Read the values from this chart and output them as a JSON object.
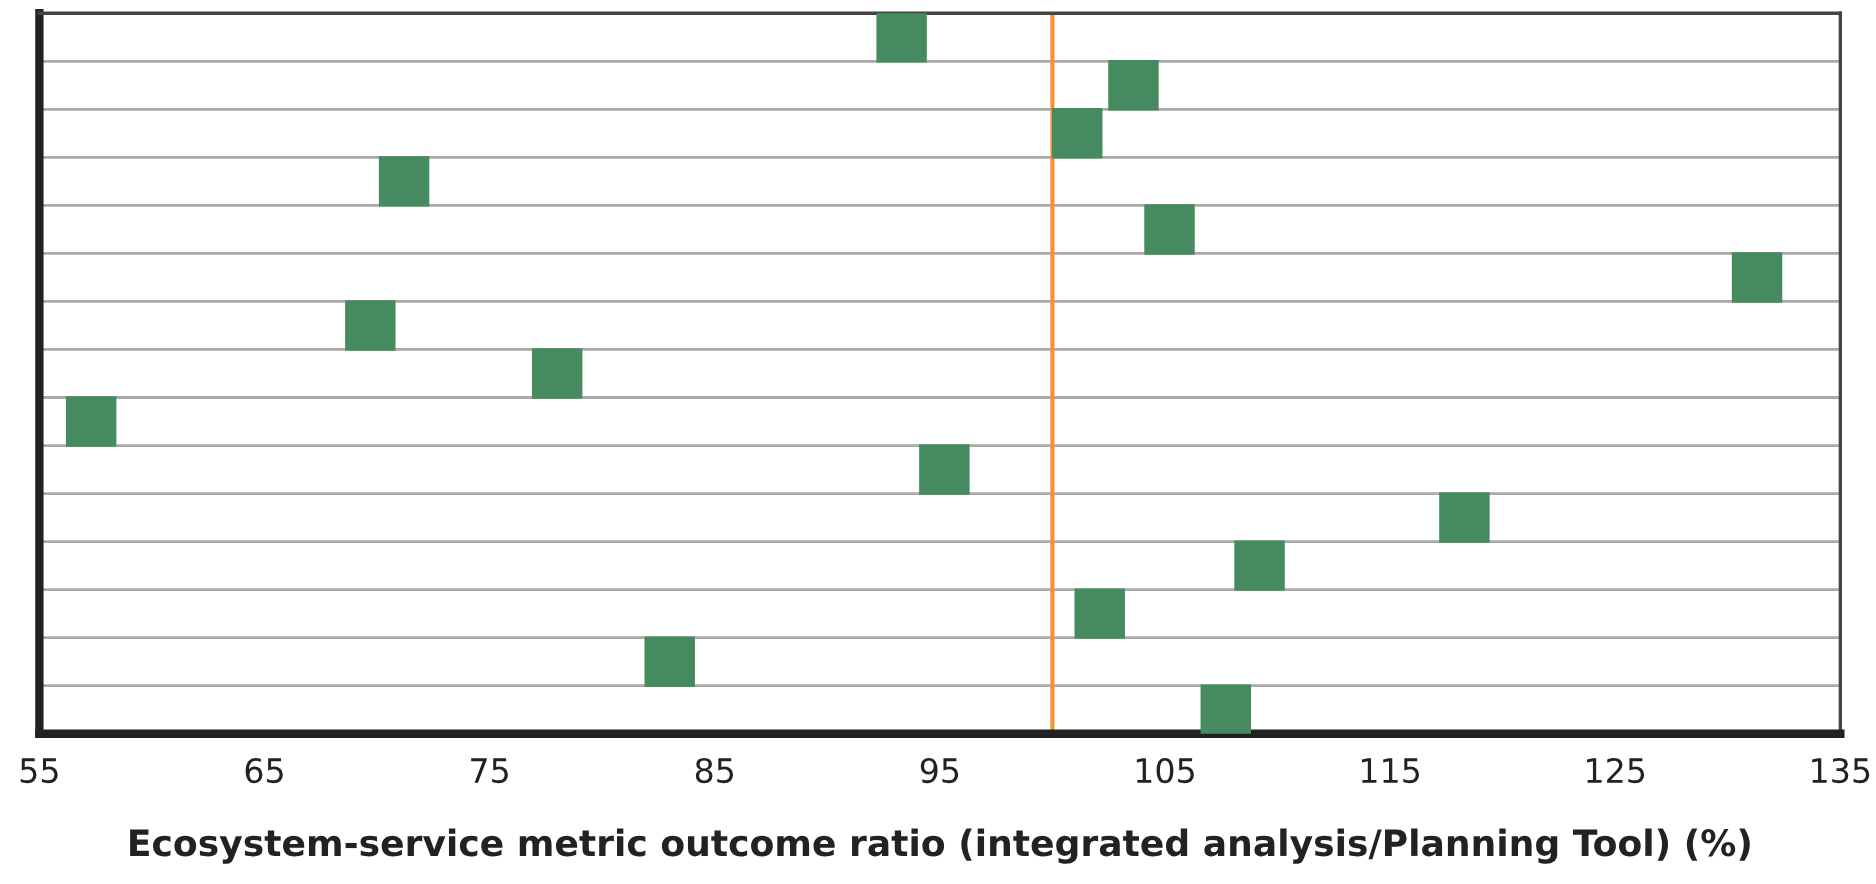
{
  "chart_data": {
    "type": "scatter",
    "xlabel": "Ecosystem-service metric outcome ratio (integrated analysis/Planning Tool) (%)",
    "categories": [
      null,
      null,
      null,
      null,
      null,
      null,
      null,
      null,
      null,
      null,
      null,
      null,
      null,
      null,
      null
    ],
    "series": [
      {
        "color": "#468b60",
        "values": [
          93.3,
          103.6,
          101.1,
          71.2,
          105.2,
          131.3,
          69.7,
          78.0,
          57.3,
          95.2,
          118.3,
          109.2,
          102.1,
          83.0,
          107.7
        ]
      }
    ],
    "xlim": [
      55,
      135
    ],
    "xticks": [
      55,
      65,
      75,
      85,
      95,
      105,
      115,
      125,
      135
    ],
    "ref_lines": [
      {
        "axis": "x",
        "value": 100,
        "color": "#f39233"
      }
    ],
    "orientation": "horizontal",
    "grid": "y",
    "marker": "square",
    "tick_labels": "x"
  }
}
